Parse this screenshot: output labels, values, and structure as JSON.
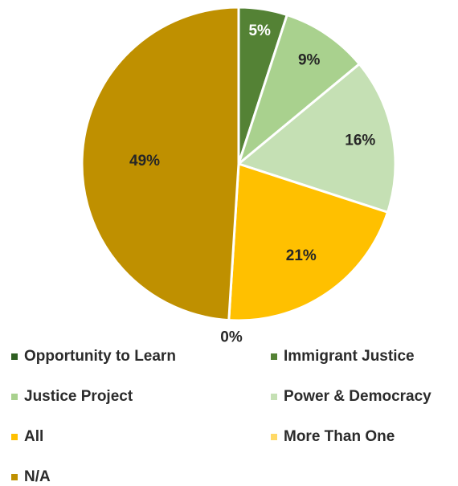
{
  "colors": {
    "background": "#ffffff"
  },
  "chart_data": {
    "type": "pie",
    "title": "",
    "start_angle_deg": 0,
    "direction": "clockwise",
    "legend_position": "bottom",
    "slices": [
      {
        "name": "Opportunity to Learn",
        "value": 0,
        "label": "",
        "color": "#2f5f22",
        "label_color": "#ffffff"
      },
      {
        "name": "Immigrant Justice",
        "value": 5,
        "label": "5%",
        "color": "#548235",
        "label_color": "#ffffff"
      },
      {
        "name": "Justice Project",
        "value": 9,
        "label": "9%",
        "color": "#a9d18e",
        "label_color": "#262626"
      },
      {
        "name": "Power & Democracy",
        "value": 16,
        "label": "16%",
        "color": "#c5e0b4",
        "label_color": "#262626"
      },
      {
        "name": "All",
        "value": 21,
        "label": "21%",
        "color": "#ffc000",
        "label_color": "#262626"
      },
      {
        "name": "More Than One",
        "value": 0,
        "label": "0%",
        "color": "#ffd966",
        "label_color": "#262626"
      },
      {
        "name": "N/A",
        "value": 49,
        "label": "49%",
        "color": "#bf9000",
        "label_color": "#262626"
      }
    ]
  }
}
